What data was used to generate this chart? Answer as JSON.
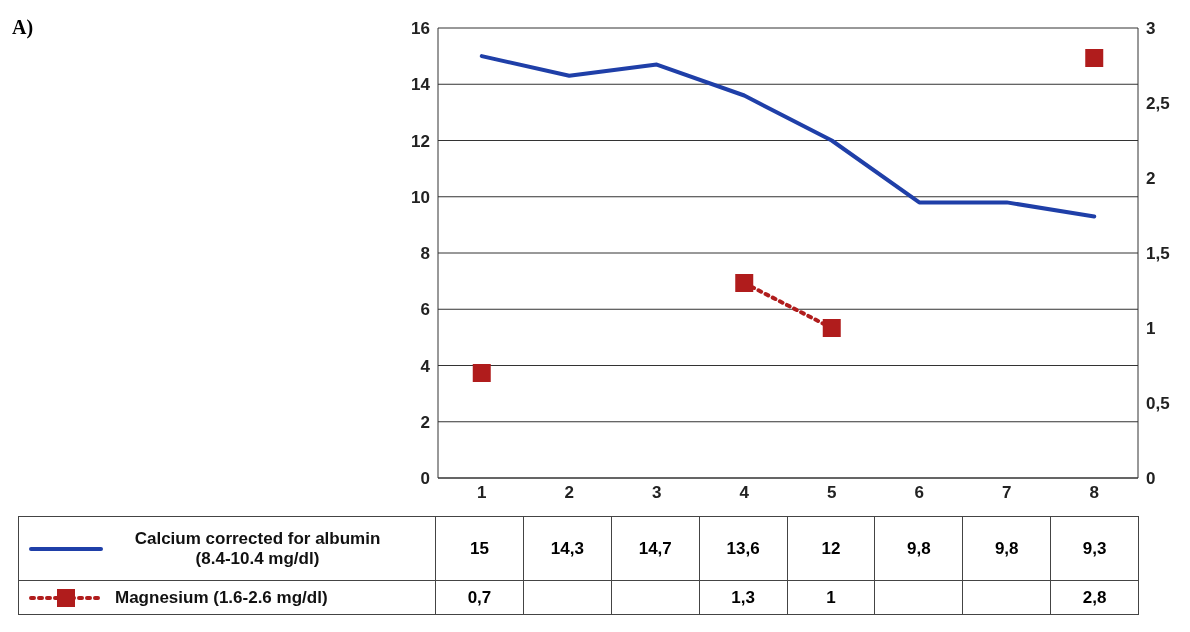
{
  "chart_data": {
    "type": "line",
    "annotations": [
      "A)"
    ],
    "categories": [
      "1",
      "2",
      "3",
      "4",
      "5",
      "6",
      "7",
      "8"
    ],
    "series": [
      {
        "name": "Calcium corrected for albumin (8.4-10.4 mg/dl)",
        "color": "#1f3fa8",
        "values": [
          15,
          14.3,
          14.7,
          13.6,
          12,
          9.8,
          9.8,
          9.3
        ],
        "value_labels": [
          "15",
          "14,3",
          "14,7",
          "13,6",
          "12",
          "9,8",
          "9,8",
          "9,3"
        ],
        "marker": "none",
        "line_style": "solid"
      },
      {
        "name": "Magnesium (1.6-2.6 mg/dl)",
        "color": "#b01c1c",
        "values": [
          0.7,
          null,
          null,
          1.3,
          1,
          null,
          null,
          2.8
        ],
        "value_labels": [
          "0,7",
          null,
          null,
          "1,3",
          "1",
          null,
          null,
          "2,8"
        ],
        "axis": "y2",
        "marker": "square",
        "line_style": "dotted"
      }
    ],
    "ylim": [
      0,
      16
    ],
    "yticks": [
      0,
      2,
      4,
      6,
      8,
      10,
      12,
      14,
      16
    ],
    "y2lim": [
      0,
      3
    ],
    "y2ticks": [
      0,
      {
        "value": 0.5,
        "label": "0,5"
      },
      1,
      {
        "value": 1.5,
        "label": "1,5"
      },
      2,
      {
        "value": 2.5,
        "label": "2,5"
      },
      3
    ],
    "grid": "y",
    "legend": "bottom"
  }
}
